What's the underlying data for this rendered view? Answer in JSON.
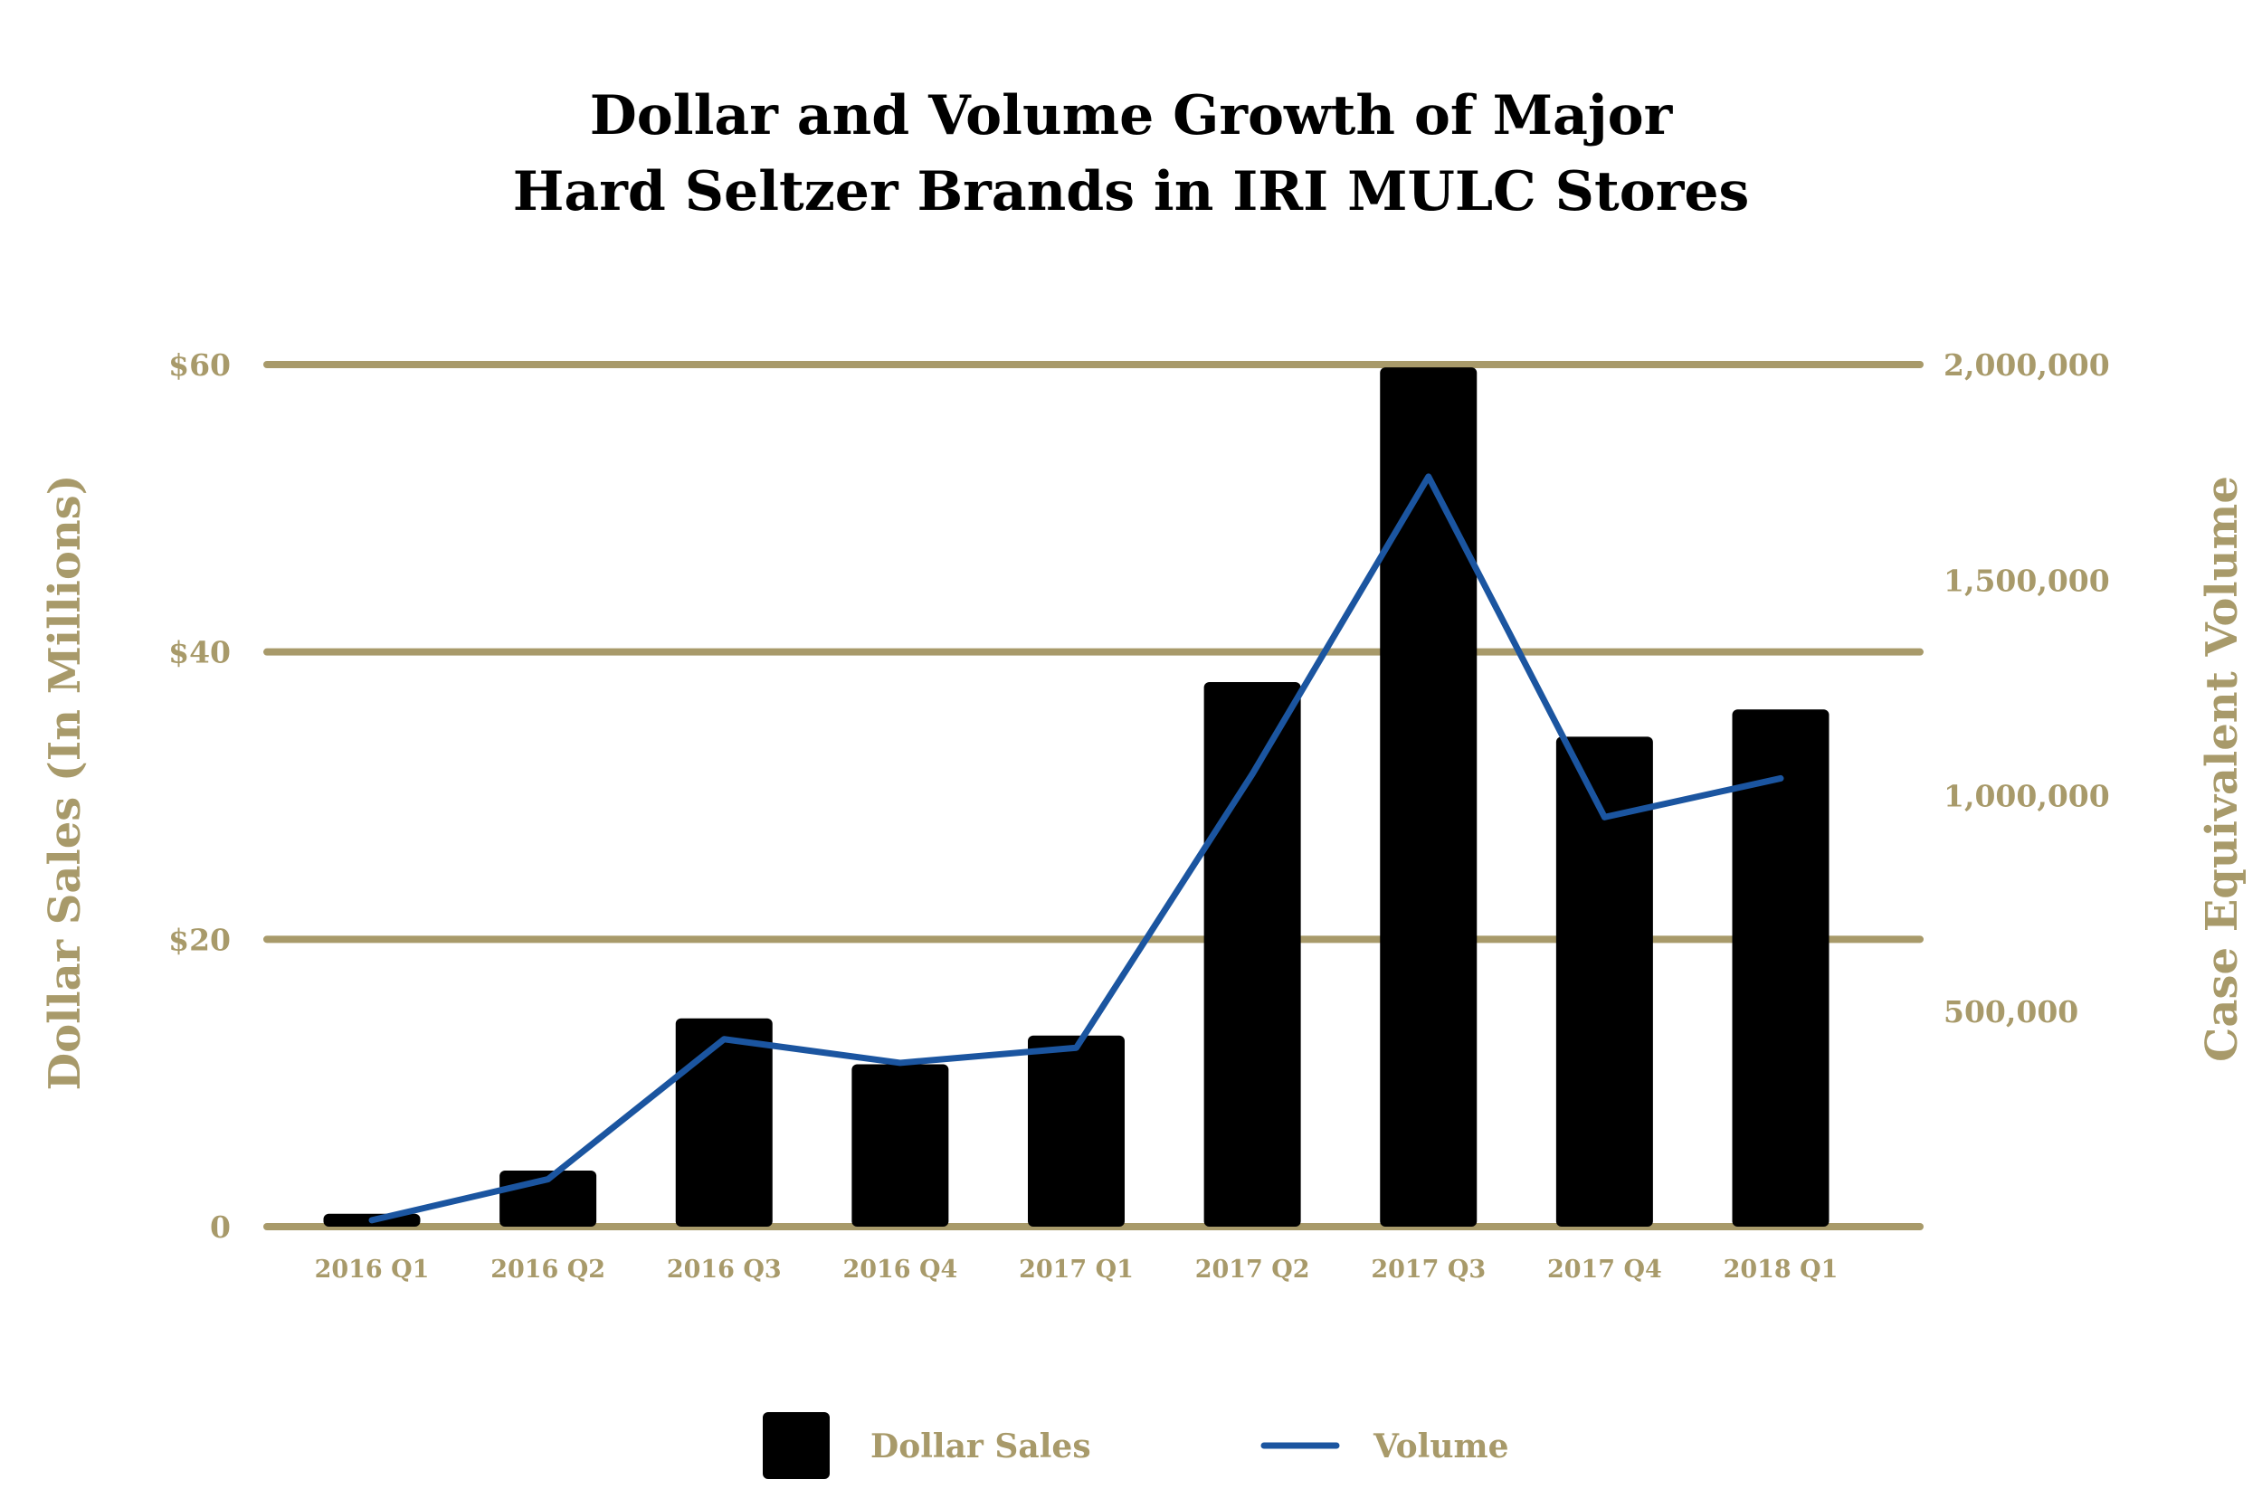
{
  "colors": {
    "gold": "#A89A6A",
    "bar": "#000000",
    "line": "#1B55A0",
    "title": "#000000",
    "background": "#FFFFFF"
  },
  "chart_data": {
    "type": "bar",
    "title_lines": [
      "Dollar and Volume Growth of Major",
      "Hard Seltzer Brands in IRI MULC Stores"
    ],
    "categories": [
      "2016 Q1",
      "2016 Q2",
      "2016 Q3",
      "2016 Q4",
      "2017 Q1",
      "2017 Q2",
      "2017 Q3",
      "2017 Q4",
      "2018 Q1"
    ],
    "series": [
      {
        "name": "Dollar Sales",
        "type": "bar",
        "axis": "left",
        "values": [
          0.9,
          3.9,
          14.5,
          11.3,
          13.3,
          37.9,
          59.8,
          34.1,
          36.0
        ]
      },
      {
        "name": "Volume",
        "type": "line",
        "axis": "right",
        "values": [
          15000,
          110000,
          435000,
          380000,
          415000,
          1050000,
          1740000,
          950000,
          1040000
        ]
      }
    ],
    "y_left": {
      "label": "Dollar Sales (In Millions)",
      "ylim": [
        0,
        60
      ],
      "ticks": [
        {
          "value": 0,
          "label": "0"
        },
        {
          "value": 20,
          "label": "$20"
        },
        {
          "value": 40,
          "label": "$40"
        },
        {
          "value": 60,
          "label": "$60"
        }
      ]
    },
    "y_right": {
      "label": "Case Equivalent Volume",
      "ylim": [
        0,
        2050000
      ],
      "ticks": [
        {
          "value": 500000,
          "label": "500,000"
        },
        {
          "value": 1000000,
          "label": "1,000,000"
        },
        {
          "value": 1500000,
          "label": "1,500,000"
        },
        {
          "value": 2000000,
          "label": "2,000,000"
        }
      ]
    },
    "gridlines_at_left_values": [
      0,
      20,
      40,
      60
    ],
    "legend": {
      "position": "bottom-center",
      "items": [
        {
          "label": "Dollar Sales",
          "symbol": "bar"
        },
        {
          "label": "Volume",
          "symbol": "line"
        }
      ]
    }
  }
}
